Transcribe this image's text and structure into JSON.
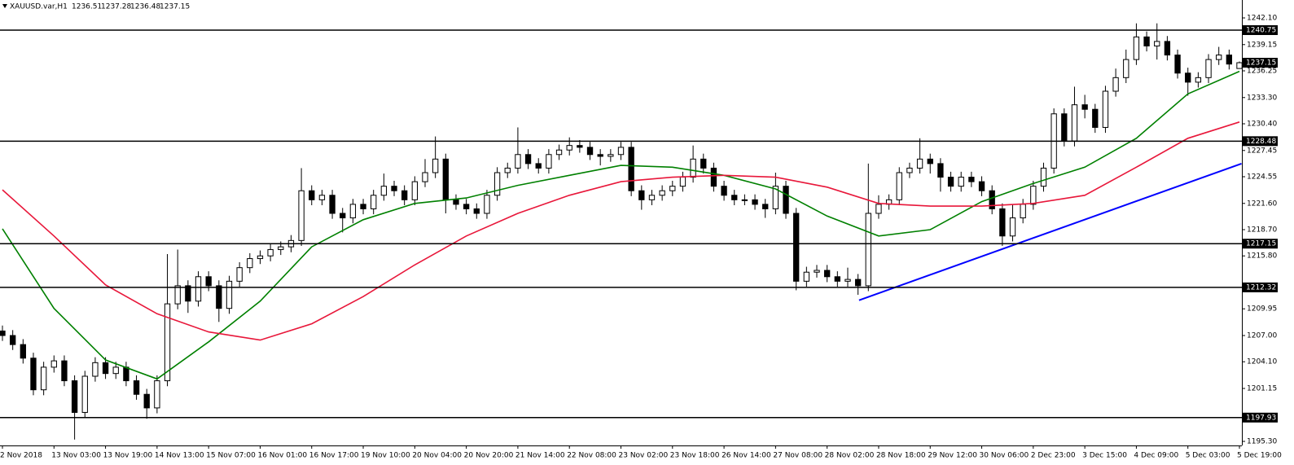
{
  "chart_data": {
    "type": "candlestick",
    "symbol": "XAUUSD.var,H1",
    "ohlc": [
      1236.51,
      1237.28,
      1236.48,
      1237.15
    ],
    "current_price": 1237.15,
    "ylim": [
      1194.85,
      1244.08
    ],
    "yticks": [
      {
        "value": 1242.1,
        "label": "1242.10"
      },
      1239.15,
      1236.25,
      {
        "value": 1233.3,
        "label": "1233.30"
      },
      {
        "value": 1230.4,
        "label": "1230.40"
      },
      1227.45,
      1224.55,
      {
        "value": 1221.6,
        "label": "1221.60"
      },
      {
        "value": 1218.7,
        "label": "1218.70"
      },
      {
        "value": 1215.8,
        "label": "1215.80"
      },
      1209.95,
      {
        "value": 1207,
        "label": "1207.00"
      },
      {
        "value": 1204.1,
        "label": "1204.10"
      },
      1201.15,
      {
        "value": 1195.3,
        "label": "1195.30"
      }
    ],
    "levels": [
      1240.75,
      1228.48,
      1217.15,
      1212.32,
      1197.93
    ],
    "level_color": "#000000",
    "categories": [
      "2 Nov 2018",
      null,
      null,
      null,
      null,
      "13 Nov 03:00",
      null,
      null,
      null,
      null,
      "13 Nov 19:00",
      null,
      null,
      null,
      null,
      "14 Nov 13:00",
      null,
      null,
      null,
      null,
      "15 Nov 07:00",
      null,
      null,
      null,
      null,
      "16 Nov 01:00",
      null,
      null,
      null,
      null,
      "16 Nov 17:00",
      null,
      null,
      null,
      null,
      "19 Nov 10:00",
      null,
      null,
      null,
      null,
      "20 Nov 04:00",
      null,
      null,
      null,
      null,
      "20 Nov 20:00",
      null,
      null,
      null,
      null,
      "21 Nov 14:00",
      null,
      null,
      null,
      null,
      "22 Nov 08:00",
      null,
      null,
      null,
      null,
      "23 Nov 02:00",
      null,
      null,
      null,
      null,
      "23 Nov 18:00",
      null,
      null,
      null,
      null,
      "26 Nov 14:00",
      null,
      null,
      null,
      null,
      "27 Nov 08:00",
      null,
      null,
      null,
      null,
      "28 Nov 02:00",
      null,
      null,
      null,
      null,
      "28 Nov 18:00",
      null,
      null,
      null,
      null,
      "29 Nov 12:00",
      null,
      null,
      null,
      null,
      "30 Nov 06:00",
      null,
      null,
      null,
      null,
      "2 Dec 23:00",
      null,
      null,
      null,
      null,
      "3 Dec 15:00",
      null,
      null,
      null,
      null,
      "4 Dec 09:00",
      null,
      null,
      null,
      null,
      "5 Dec 03:00",
      null,
      null,
      null,
      null,
      "5 Dec 19:00"
    ],
    "open": [
      1207.5,
      1207.0,
      1206.0,
      1204.5,
      1201.0,
      1203.5,
      1204.2,
      1202.0,
      1198.5,
      1202.5,
      1204.0,
      1202.8,
      1203.5,
      1202.0,
      1200.5,
      1199.0,
      1202.0,
      1210.5,
      1212.5,
      1210.8,
      1213.5,
      1212.5,
      1210.0,
      1213.0,
      1214.5,
      1215.5,
      1215.8,
      1216.5,
      1216.8,
      1217.5,
      1223.0,
      1222.0,
      1222.5,
      1220.5,
      1220.0,
      1221.5,
      1221.0,
      1222.5,
      1223.5,
      1223.0,
      1222.0,
      1224.0,
      1225.0,
      1226.5,
      1222.0,
      1221.5,
      1221.0,
      1220.5,
      1222.5,
      1225.0,
      1225.5,
      1227.0,
      1226.0,
      1225.5,
      1227.0,
      1227.5,
      1228.0,
      1227.8,
      1227.0,
      1226.8,
      1227.0,
      1227.8,
      1223.0,
      1222.0,
      1222.5,
      1223.0,
      1223.5,
      1224.5,
      1226.5,
      1225.5,
      1223.5,
      1222.5,
      1222.0,
      1222.0,
      1221.5,
      1221.0,
      1223.5,
      1220.5,
      1213.0,
      1214.0,
      1214.2,
      1213.5,
      1213.0,
      1213.2,
      1212.5,
      1220.5,
      1221.5,
      1222.0,
      1225.0,
      1225.5,
      1226.5,
      1226.0,
      1224.5,
      1223.5,
      1224.5,
      1224.0,
      1223.0,
      1221.0,
      1218.0,
      1220.0,
      1221.5,
      1223.5,
      1225.5,
      1231.5,
      1228.5,
      1232.5,
      1232.0,
      1230.0,
      1234.0,
      1235.5,
      1237.5,
      1240.0,
      1239.0,
      1239.5,
      1238.0,
      1236.0,
      1235.0,
      1235.5,
      1237.5,
      1238.0,
      1236.51
    ],
    "high": [
      1208.1,
      1207.6,
      1206.6,
      1205.1,
      1204.1,
      1204.8,
      1204.8,
      1202.6,
      1203.1,
      1204.6,
      1204.6,
      1204.1,
      1204.1,
      1202.6,
      1201.1,
      1202.6,
      1216.0,
      1216.5,
      1213.1,
      1214.1,
      1214.1,
      1213.1,
      1213.6,
      1215.1,
      1216.1,
      1216.4,
      1217.1,
      1217.4,
      1218.1,
      1225.5,
      1223.6,
      1223.1,
      1223.1,
      1221.1,
      1222.1,
      1222.1,
      1223.1,
      1224.9,
      1224.1,
      1223.6,
      1224.6,
      1226.5,
      1229.0,
      1227.1,
      1222.6,
      1222.1,
      1221.6,
      1223.1,
      1225.6,
      1226.1,
      1230.0,
      1227.6,
      1226.6,
      1227.6,
      1228.1,
      1228.9,
      1228.6,
      1228.4,
      1227.6,
      1227.6,
      1228.4,
      1228.4,
      1223.6,
      1223.1,
      1223.6,
      1224.1,
      1225.1,
      1228.0,
      1227.1,
      1226.1,
      1224.1,
      1223.1,
      1222.6,
      1222.6,
      1222.1,
      1225.0,
      1224.1,
      1221.1,
      1214.6,
      1214.8,
      1214.8,
      1214.1,
      1214.5,
      1213.8,
      1226.0,
      1222.5,
      1222.6,
      1225.6,
      1226.1,
      1228.8,
      1227.1,
      1226.6,
      1225.1,
      1225.1,
      1225.1,
      1224.6,
      1223.6,
      1221.6,
      1221.5,
      1222.1,
      1224.1,
      1226.1,
      1232.1,
      1232.1,
      1234.5,
      1233.6,
      1232.6,
      1234.6,
      1236.5,
      1238.6,
      1241.5,
      1240.6,
      1241.5,
      1240.1,
      1238.6,
      1236.6,
      1236.1,
      1238.1,
      1238.9,
      1238.6,
      1237.28
    ],
    "low": [
      1206.4,
      1205.4,
      1203.9,
      1200.4,
      1200.4,
      1202.9,
      1201.4,
      1195.5,
      1197.9,
      1201.9,
      1202.2,
      1202.2,
      1201.4,
      1199.9,
      1197.8,
      1198.4,
      1201.4,
      1209.9,
      1209.5,
      1210.2,
      1211.9,
      1208.5,
      1209.4,
      1212.4,
      1213.9,
      1214.9,
      1215.2,
      1215.9,
      1216.2,
      1216.9,
      1221.4,
      1221.4,
      1219.9,
      1218.4,
      1219.4,
      1220.4,
      1220.4,
      1221.9,
      1222.4,
      1221.4,
      1221.4,
      1223.4,
      1224.4,
      1220.5,
      1220.9,
      1220.4,
      1219.9,
      1219.9,
      1221.9,
      1224.4,
      1224.9,
      1225.4,
      1224.9,
      1224.9,
      1226.4,
      1226.9,
      1227.2,
      1226.4,
      1225.8,
      1226.2,
      1226.4,
      1222.4,
      1220.9,
      1221.4,
      1221.9,
      1222.4,
      1222.9,
      1223.9,
      1224.9,
      1222.9,
      1221.9,
      1221.4,
      1221.4,
      1220.9,
      1220.0,
      1220.4,
      1219.9,
      1212.0,
      1212.4,
      1213.4,
      1212.9,
      1212.4,
      1212.4,
      1211.5,
      1211.9,
      1219.9,
      1220.9,
      1221.4,
      1224.4,
      1224.9,
      1224.9,
      1222.9,
      1222.9,
      1222.9,
      1223.4,
      1222.4,
      1220.4,
      1216.9,
      1217.4,
      1219.4,
      1220.9,
      1222.9,
      1224.9,
      1227.9,
      1227.9,
      1231.0,
      1229.4,
      1229.4,
      1233.4,
      1234.9,
      1236.9,
      1238.4,
      1237.5,
      1237.4,
      1235.4,
      1233.5,
      1234.4,
      1234.9,
      1236.9,
      1236.4,
      1236.48
    ],
    "close": [
      1207.0,
      1206.0,
      1204.5,
      1201.0,
      1203.5,
      1204.2,
      1202.0,
      1198.5,
      1202.5,
      1204.0,
      1202.8,
      1203.5,
      1202.0,
      1200.5,
      1199.0,
      1202.0,
      1210.5,
      1212.5,
      1210.8,
      1213.5,
      1212.5,
      1210.0,
      1213.0,
      1214.5,
      1215.5,
      1215.8,
      1216.5,
      1216.8,
      1217.5,
      1223.0,
      1222.0,
      1222.5,
      1220.5,
      1220.0,
      1221.5,
      1221.0,
      1222.5,
      1223.5,
      1223.0,
      1222.0,
      1224.0,
      1225.0,
      1226.5,
      1222.0,
      1221.5,
      1221.0,
      1220.5,
      1222.5,
      1225.0,
      1225.5,
      1227.0,
      1226.0,
      1225.5,
      1227.0,
      1227.5,
      1228.0,
      1227.8,
      1227.0,
      1226.8,
      1227.0,
      1227.8,
      1223.0,
      1222.0,
      1222.5,
      1223.0,
      1223.5,
      1224.5,
      1226.5,
      1225.5,
      1223.5,
      1222.5,
      1222.0,
      1222.0,
      1221.5,
      1221.0,
      1223.5,
      1220.5,
      1213.0,
      1214.0,
      1214.2,
      1213.5,
      1213.0,
      1213.2,
      1212.5,
      1220.5,
      1221.5,
      1222.0,
      1225.0,
      1225.5,
      1226.5,
      1226.0,
      1224.5,
      1223.5,
      1224.5,
      1224.0,
      1223.0,
      1221.0,
      1218.0,
      1220.0,
      1221.5,
      1223.5,
      1225.5,
      1231.5,
      1228.5,
      1232.5,
      1232.0,
      1230.0,
      1234.0,
      1235.5,
      1237.5,
      1240.0,
      1239.0,
      1239.5,
      1238.0,
      1236.0,
      1235.0,
      1235.5,
      1237.5,
      1238.0,
      1237.0,
      1237.15
    ],
    "lines": [
      {
        "color": "#008000",
        "x": [
          0,
          5,
          10,
          15,
          20,
          25,
          30,
          35,
          40,
          45,
          50,
          55,
          60,
          65,
          70,
          75,
          80,
          85,
          90,
          95,
          100,
          105,
          110,
          115,
          120
        ],
        "values": [
          1218.8,
          1210.0,
          1204.3,
          1202.2,
          1206.3,
          1210.8,
          1216.8,
          1219.8,
          1221.6,
          1222.2,
          1223.6,
          1224.7,
          1225.8,
          1225.6,
          1224.7,
          1223.2,
          1220.2,
          1218.0,
          1218.7,
          1221.8,
          1223.8,
          1225.6,
          1228.8,
          1233.7,
          1236.2
        ]
      },
      {
        "color": "#e8173a",
        "x": [
          0,
          5,
          10,
          15,
          20,
          25,
          30,
          35,
          40,
          45,
          50,
          55,
          60,
          65,
          70,
          75,
          80,
          85,
          90,
          95,
          100,
          105,
          110,
          115,
          120
        ],
        "values": [
          1223.1,
          1218.0,
          1212.6,
          1209.4,
          1207.4,
          1206.5,
          1208.3,
          1211.3,
          1214.8,
          1218.0,
          1220.5,
          1222.5,
          1224.0,
          1224.5,
          1224.7,
          1224.5,
          1223.4,
          1221.6,
          1221.3,
          1221.3,
          1221.6,
          1222.5,
          1225.6,
          1228.8,
          1230.6
        ]
      }
    ],
    "trendline": {
      "color": "#0000ff",
      "x": [
        83.1,
        120.2
      ],
      "values": [
        1210.9,
        1226.0
      ]
    }
  }
}
